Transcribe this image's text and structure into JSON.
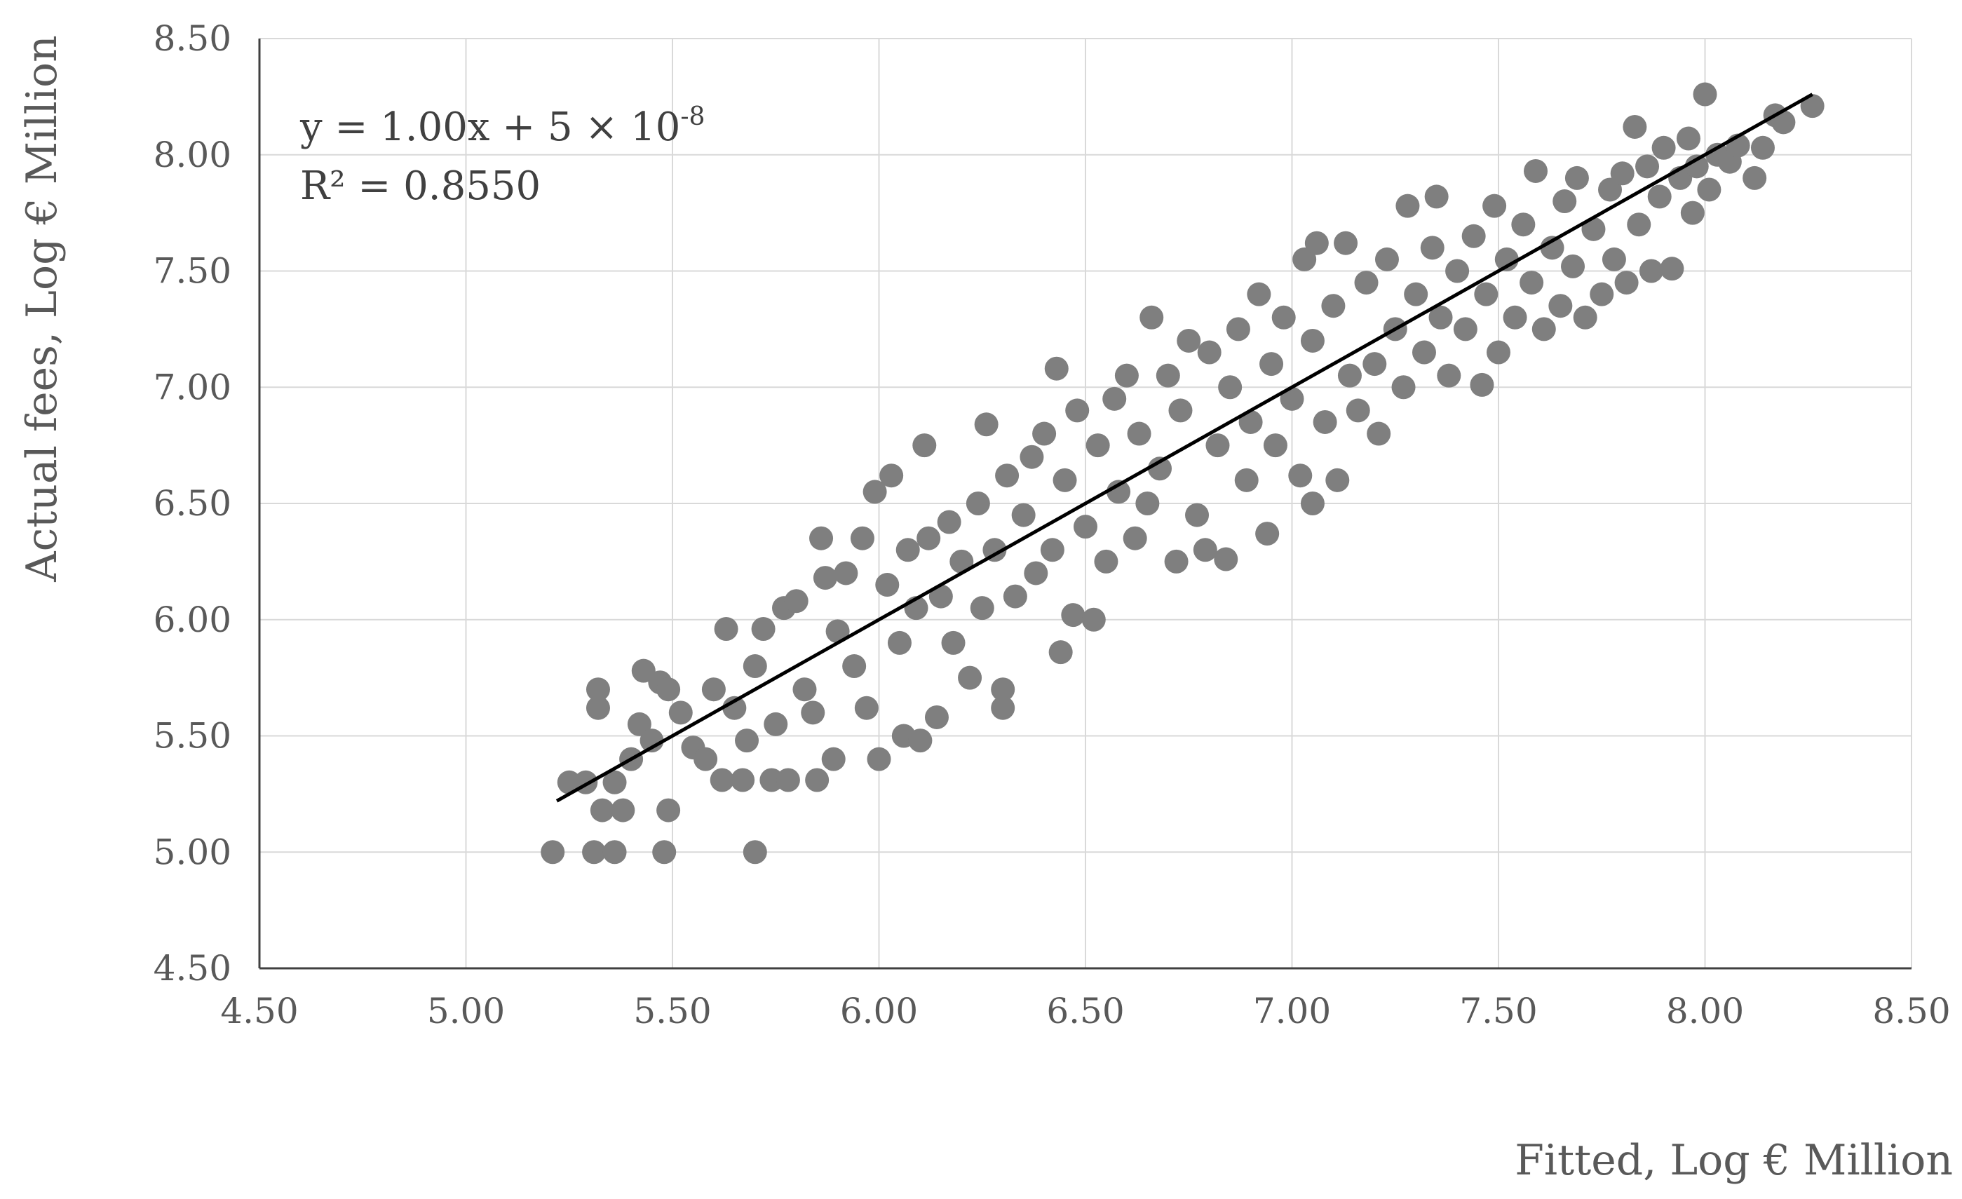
{
  "chart_data": {
    "type": "scatter",
    "title": "",
    "xlabel": "Fitted, Log € Million",
    "ylabel": "Actual fees, Log € Million",
    "xlim": [
      4.5,
      8.5
    ],
    "ylim": [
      4.5,
      8.5
    ],
    "x_ticks": [
      "4.50",
      "5.00",
      "5.50",
      "6.00",
      "6.50",
      "7.00",
      "7.50",
      "8.00",
      "8.50"
    ],
    "y_ticks": [
      "4.50",
      "5.00",
      "5.50",
      "6.00",
      "6.50",
      "7.00",
      "7.50",
      "8.00",
      "8.50"
    ],
    "grid": true,
    "legend": "none",
    "point_color": "#7f7f7f",
    "trendline": {
      "slope": 1.0,
      "intercept": 5e-08,
      "x_range": [
        5.22,
        8.26
      ],
      "color": "#000000",
      "equation_label": "y = 1.00x + 5 × 10",
      "equation_exponent": "-8",
      "r2_label": "R² = 0.8550"
    },
    "series": [
      {
        "points": [
          [
            5.21,
            5.0
          ],
          [
            5.31,
            5.0
          ],
          [
            5.36,
            5.0
          ],
          [
            5.48,
            5.0
          ],
          [
            5.7,
            5.0
          ],
          [
            5.25,
            5.3
          ],
          [
            5.29,
            5.3
          ],
          [
            5.33,
            5.18
          ],
          [
            5.38,
            5.18
          ],
          [
            5.49,
            5.18
          ],
          [
            5.36,
            5.3
          ],
          [
            5.32,
            5.62
          ],
          [
            5.32,
            5.7
          ],
          [
            5.4,
            5.4
          ],
          [
            5.42,
            5.55
          ],
          [
            5.43,
            5.78
          ],
          [
            5.45,
            5.48
          ],
          [
            5.47,
            5.73
          ],
          [
            5.49,
            5.7
          ],
          [
            5.52,
            5.6
          ],
          [
            5.55,
            5.45
          ],
          [
            5.58,
            5.4
          ],
          [
            5.6,
            5.7
          ],
          [
            5.62,
            5.31
          ],
          [
            5.63,
            5.96
          ],
          [
            5.65,
            5.62
          ],
          [
            5.67,
            5.31
          ],
          [
            5.68,
            5.48
          ],
          [
            5.7,
            5.8
          ],
          [
            5.72,
            5.96
          ],
          [
            5.74,
            5.31
          ],
          [
            5.75,
            5.55
          ],
          [
            5.77,
            6.05
          ],
          [
            5.78,
            5.31
          ],
          [
            5.8,
            6.08
          ],
          [
            5.82,
            5.7
          ],
          [
            5.84,
            5.6
          ],
          [
            5.85,
            5.31
          ],
          [
            5.86,
            6.35
          ],
          [
            5.87,
            6.18
          ],
          [
            5.89,
            5.4
          ],
          [
            5.9,
            5.95
          ],
          [
            5.92,
            6.2
          ],
          [
            5.94,
            5.8
          ],
          [
            5.96,
            6.35
          ],
          [
            5.97,
            5.62
          ],
          [
            5.99,
            6.55
          ],
          [
            6.0,
            5.4
          ],
          [
            6.02,
            6.15
          ],
          [
            6.03,
            6.62
          ],
          [
            6.05,
            5.9
          ],
          [
            6.06,
            5.5
          ],
          [
            6.07,
            6.3
          ],
          [
            6.09,
            6.05
          ],
          [
            6.1,
            5.48
          ],
          [
            6.11,
            6.75
          ],
          [
            6.12,
            6.35
          ],
          [
            6.14,
            5.58
          ],
          [
            6.15,
            6.1
          ],
          [
            6.17,
            6.42
          ],
          [
            6.18,
            5.9
          ],
          [
            6.2,
            6.25
          ],
          [
            6.22,
            5.75
          ],
          [
            6.24,
            6.5
          ],
          [
            6.25,
            6.05
          ],
          [
            6.26,
            6.84
          ],
          [
            6.28,
            6.3
          ],
          [
            6.3,
            5.62
          ],
          [
            6.3,
            5.7
          ],
          [
            6.31,
            6.62
          ],
          [
            6.33,
            6.1
          ],
          [
            6.35,
            6.45
          ],
          [
            6.37,
            6.7
          ],
          [
            6.38,
            6.2
          ],
          [
            6.4,
            6.8
          ],
          [
            6.42,
            6.3
          ],
          [
            6.43,
            7.08
          ],
          [
            6.44,
            5.86
          ],
          [
            6.45,
            6.6
          ],
          [
            6.47,
            6.02
          ],
          [
            6.48,
            6.9
          ],
          [
            6.5,
            6.4
          ],
          [
            6.52,
            6.0
          ],
          [
            6.53,
            6.75
          ],
          [
            6.55,
            6.25
          ],
          [
            6.57,
            6.95
          ],
          [
            6.58,
            6.55
          ],
          [
            6.6,
            7.05
          ],
          [
            6.62,
            6.35
          ],
          [
            6.63,
            6.8
          ],
          [
            6.65,
            6.5
          ],
          [
            6.66,
            7.3
          ],
          [
            6.68,
            6.65
          ],
          [
            6.7,
            7.05
          ],
          [
            6.72,
            6.25
          ],
          [
            6.73,
            6.9
          ],
          [
            6.75,
            7.2
          ],
          [
            6.77,
            6.45
          ],
          [
            6.79,
            6.3
          ],
          [
            6.8,
            7.15
          ],
          [
            6.82,
            6.75
          ],
          [
            6.84,
            6.26
          ],
          [
            6.85,
            7.0
          ],
          [
            6.87,
            7.25
          ],
          [
            6.89,
            6.6
          ],
          [
            6.9,
            6.85
          ],
          [
            6.92,
            7.4
          ],
          [
            6.94,
            6.37
          ],
          [
            6.95,
            7.1
          ],
          [
            6.96,
            6.75
          ],
          [
            6.98,
            7.3
          ],
          [
            7.0,
            6.95
          ],
          [
            7.02,
            6.62
          ],
          [
            7.03,
            7.55
          ],
          [
            7.05,
            6.5
          ],
          [
            7.05,
            7.2
          ],
          [
            7.06,
            7.62
          ],
          [
            7.08,
            6.85
          ],
          [
            7.1,
            7.35
          ],
          [
            7.11,
            6.6
          ],
          [
            7.13,
            7.62
          ],
          [
            7.14,
            7.05
          ],
          [
            7.16,
            6.9
          ],
          [
            7.18,
            7.45
          ],
          [
            7.2,
            7.1
          ],
          [
            7.21,
            6.8
          ],
          [
            7.23,
            7.55
          ],
          [
            7.25,
            7.25
          ],
          [
            7.27,
            7.0
          ],
          [
            7.28,
            7.78
          ],
          [
            7.3,
            7.4
          ],
          [
            7.32,
            7.15
          ],
          [
            7.34,
            7.6
          ],
          [
            7.35,
            7.82
          ],
          [
            7.36,
            7.3
          ],
          [
            7.38,
            7.05
          ],
          [
            7.4,
            7.5
          ],
          [
            7.42,
            7.25
          ],
          [
            7.44,
            7.65
          ],
          [
            7.46,
            7.01
          ],
          [
            7.47,
            7.4
          ],
          [
            7.49,
            7.78
          ],
          [
            7.5,
            7.15
          ],
          [
            7.52,
            7.55
          ],
          [
            7.54,
            7.3
          ],
          [
            7.56,
            7.7
          ],
          [
            7.58,
            7.45
          ],
          [
            7.59,
            7.93
          ],
          [
            7.61,
            7.25
          ],
          [
            7.63,
            7.6
          ],
          [
            7.65,
            7.35
          ],
          [
            7.66,
            7.8
          ],
          [
            7.68,
            7.52
          ],
          [
            7.69,
            7.9
          ],
          [
            7.71,
            7.3
          ],
          [
            7.73,
            7.68
          ],
          [
            7.75,
            7.4
          ],
          [
            7.77,
            7.85
          ],
          [
            7.78,
            7.55
          ],
          [
            7.8,
            7.92
          ],
          [
            7.81,
            7.45
          ],
          [
            7.83,
            8.12
          ],
          [
            7.84,
            7.7
          ],
          [
            7.86,
            7.95
          ],
          [
            7.87,
            7.5
          ],
          [
            7.89,
            7.82
          ],
          [
            7.9,
            8.03
          ],
          [
            7.92,
            7.51
          ],
          [
            7.94,
            7.9
          ],
          [
            7.96,
            8.07
          ],
          [
            7.97,
            7.75
          ],
          [
            7.98,
            7.95
          ],
          [
            8.0,
            8.26
          ],
          [
            8.01,
            7.85
          ],
          [
            8.03,
            8.0
          ],
          [
            8.06,
            7.97
          ],
          [
            8.08,
            8.04
          ],
          [
            8.12,
            7.9
          ],
          [
            8.14,
            8.03
          ],
          [
            8.17,
            8.17
          ],
          [
            8.19,
            8.14
          ],
          [
            8.26,
            8.21
          ]
        ]
      }
    ]
  }
}
